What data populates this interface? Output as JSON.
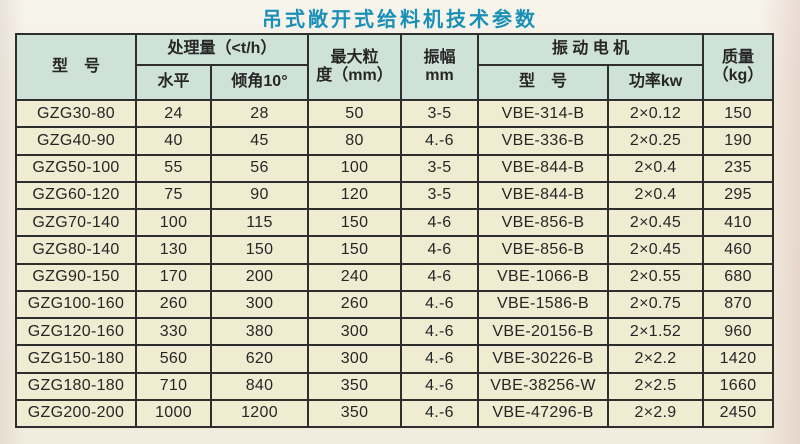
{
  "title": "吊式敞开式给料机技术参数",
  "colors": {
    "title_text": "#1a90b8",
    "header_background": "#cfe2d8",
    "row_background": "#f0ecd2",
    "table_border": "#2e2e2e",
    "page_background": "#f3efe2"
  },
  "table": {
    "headers": {
      "model": "型　号",
      "capacity_group": "处理量（<t/h）",
      "capacity_horizontal": "水平",
      "capacity_incline": "倾角10°",
      "max_particle_line1": "最大粒",
      "max_particle_line2": "度（mm）",
      "amplitude_line1": "振幅",
      "amplitude_line2": "mm",
      "motor_group": "振 动 电 机",
      "motor_model": "型　号",
      "motor_power": "功率kw",
      "mass_line1": "质量",
      "mass_line2": "（kg）"
    },
    "rows": [
      {
        "cells": [
          "GZG30-80",
          "24",
          "28",
          "50",
          "3-5",
          "VBE-314-B",
          "2×0.12",
          "150"
        ]
      },
      {
        "cells": [
          "GZG40-90",
          "40",
          "45",
          "80",
          "4.-6",
          "VBE-336-B",
          "2×0.25",
          "190"
        ]
      },
      {
        "cells": [
          "GZG50-100",
          "55",
          "56",
          "100",
          "3-5",
          "VBE-844-B",
          "2×0.4",
          "235"
        ]
      },
      {
        "cells": [
          "GZG60-120",
          "75",
          "90",
          "120",
          "3-5",
          "VBE-844-B",
          "2×0.4",
          "295"
        ]
      },
      {
        "cells": [
          "GZG70-140",
          "100",
          "115",
          "150",
          "4-6",
          "VBE-856-B",
          "2×0.45",
          "410"
        ]
      },
      {
        "cells": [
          "GZG80-140",
          "130",
          "150",
          "150",
          "4-6",
          "VBE-856-B",
          "2×0.45",
          "460"
        ]
      },
      {
        "cells": [
          "GZG90-150",
          "170",
          "200",
          "240",
          "4-6",
          "VBE-1066-B",
          "2×0.55",
          "680"
        ]
      },
      {
        "cells": [
          "GZG100-160",
          "260",
          "300",
          "260",
          "4.-6",
          "VBE-1586-B",
          "2×0.75",
          "870"
        ]
      },
      {
        "cells": [
          "GZG120-160",
          "330",
          "380",
          "300",
          "4.-6",
          "VBE-20156-B",
          "2×1.52",
          "960"
        ]
      },
      {
        "cells": [
          "GZG150-180",
          "560",
          "620",
          "300",
          "4.-6",
          "VBE-30226-B",
          "2×2.2",
          "1420"
        ]
      },
      {
        "cells": [
          "GZG180-180",
          "710",
          "840",
          "350",
          "4.-6",
          "VBE-38256-W",
          "2×2.5",
          "1660"
        ]
      },
      {
        "cells": [
          "GZG200-200",
          "1000",
          "1200",
          "350",
          "4.-6",
          "VBE-47296-B",
          "2×2.9",
          "2450"
        ]
      }
    ]
  }
}
